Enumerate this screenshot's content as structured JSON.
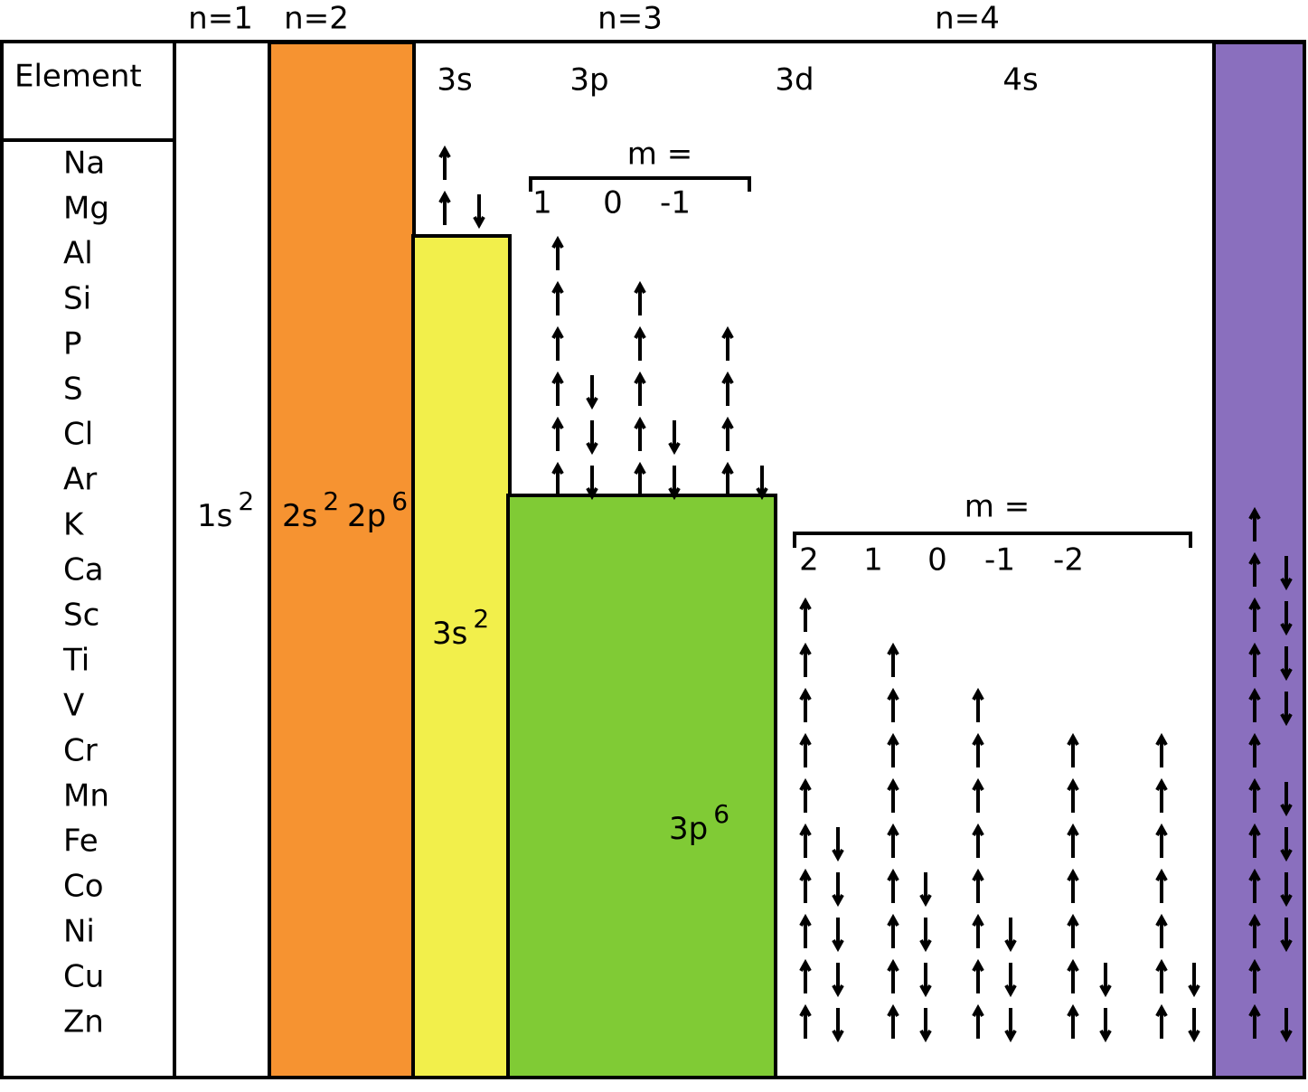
{
  "shells": [
    "n=1",
    "n=2",
    "n=3",
    "n=4"
  ],
  "element_header": "Element",
  "elements": [
    "Na",
    "Mg",
    "Al",
    "Si",
    "P",
    "S",
    "Cl",
    "Ar",
    "K",
    "Ca",
    "Sc",
    "Ti",
    "V",
    "Cr",
    "Mn",
    "Fe",
    "Co",
    "Ni",
    "Cu",
    "Zn"
  ],
  "subshells": [
    "3s",
    "3p",
    "3d",
    "4s"
  ],
  "p_orbitals": {
    "label": "m =",
    "m": [
      "1",
      "0",
      "-1"
    ]
  },
  "d_orbitals": {
    "label": "m =",
    "m": [
      "2",
      "1",
      "0",
      "-1",
      "-2"
    ]
  },
  "config_labels": [
    {
      "text": "1s",
      "sup": "2"
    },
    {
      "text": "2s",
      "sup": "2"
    },
    {
      "text": "2p",
      "sup": "6"
    },
    {
      "text": "3s",
      "sup": "2"
    },
    {
      "text": "3p",
      "sup": "6"
    }
  ]
}
